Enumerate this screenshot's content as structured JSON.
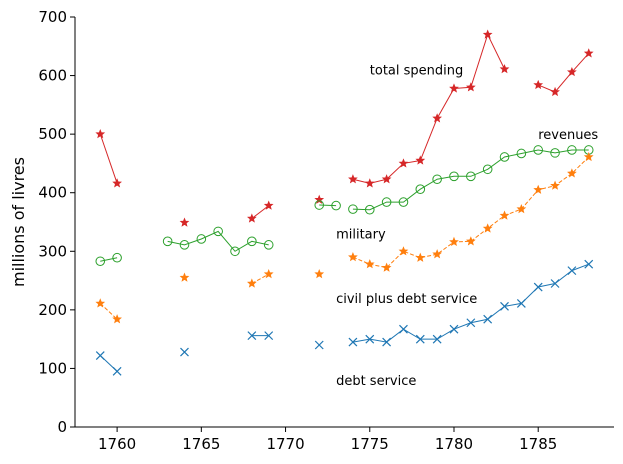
{
  "chart_data": {
    "type": "line",
    "xlabel": "",
    "ylabel": "millions of livres",
    "xlim": [
      1757.5,
      1789.5
    ],
    "ylim": [
      0,
      700
    ],
    "xticks": [
      1760,
      1765,
      1770,
      1775,
      1780,
      1785
    ],
    "yticks": [
      0,
      100,
      200,
      300,
      400,
      500,
      600,
      700
    ],
    "grid": false,
    "legend": "none",
    "annotations": [
      {
        "text": "total spending",
        "x": 1775,
        "y": 610
      },
      {
        "text": "revenues",
        "x": 1785,
        "y": 500
      },
      {
        "text": "military",
        "x": 1773,
        "y": 330
      },
      {
        "text": "civil plus debt service",
        "x": 1773,
        "y": 220
      },
      {
        "text": "debt service",
        "x": 1773,
        "y": 80
      }
    ],
    "series": [
      {
        "key": "total_spending",
        "color": "#d62728",
        "marker": "star",
        "linestyle": "solid",
        "points": [
          [
            1759,
            500
          ],
          [
            1760,
            416
          ],
          [
            1764,
            349
          ],
          [
            1768,
            356
          ],
          [
            1769,
            378
          ],
          [
            1772,
            388
          ],
          [
            1774,
            423
          ],
          [
            1775,
            416
          ],
          [
            1776,
            423
          ],
          [
            1777,
            450
          ],
          [
            1778,
            455
          ],
          [
            1779,
            527
          ],
          [
            1780,
            578
          ],
          [
            1781,
            580
          ],
          [
            1782,
            670
          ],
          [
            1783,
            611
          ],
          [
            1785,
            584
          ],
          [
            1786,
            572
          ],
          [
            1787,
            606
          ],
          [
            1788,
            638
          ]
        ],
        "segments": [
          [
            0,
            1
          ],
          [
            3,
            4
          ],
          [
            6,
            15
          ],
          [
            16,
            19
          ]
        ]
      },
      {
        "key": "revenues",
        "color": "#2ca02c",
        "marker": "circle",
        "linestyle": "solid",
        "points": [
          [
            1759,
            283
          ],
          [
            1760,
            289
          ],
          [
            1763,
            317
          ],
          [
            1764,
            311
          ],
          [
            1765,
            321
          ],
          [
            1766,
            334
          ],
          [
            1767,
            300
          ],
          [
            1768,
            317
          ],
          [
            1769,
            311
          ],
          [
            1772,
            379
          ],
          [
            1773,
            378
          ],
          [
            1774,
            372
          ],
          [
            1775,
            371
          ],
          [
            1776,
            384
          ],
          [
            1777,
            384
          ],
          [
            1778,
            406
          ],
          [
            1779,
            423
          ],
          [
            1780,
            428
          ],
          [
            1781,
            428
          ],
          [
            1782,
            440
          ],
          [
            1783,
            461
          ],
          [
            1784,
            467
          ],
          [
            1785,
            473
          ],
          [
            1786,
            468
          ],
          [
            1787,
            473
          ],
          [
            1788,
            473
          ]
        ],
        "segments": [
          [
            0,
            1
          ],
          [
            2,
            8
          ],
          [
            9,
            10
          ],
          [
            11,
            25
          ]
        ]
      },
      {
        "key": "military",
        "color": "#ff7f0e",
        "marker": "star",
        "linestyle": "dashed",
        "points": [
          [
            1759,
            211
          ],
          [
            1760,
            184
          ],
          [
            1764,
            255
          ],
          [
            1768,
            245
          ],
          [
            1769,
            261
          ],
          [
            1772,
            261
          ],
          [
            1774,
            290
          ],
          [
            1775,
            278
          ],
          [
            1776,
            272
          ],
          [
            1777,
            300
          ],
          [
            1778,
            289
          ],
          [
            1779,
            295
          ],
          [
            1780,
            316
          ],
          [
            1781,
            317
          ],
          [
            1782,
            339
          ],
          [
            1783,
            361
          ],
          [
            1784,
            372
          ],
          [
            1785,
            405
          ],
          [
            1786,
            412
          ],
          [
            1787,
            433
          ],
          [
            1788,
            461
          ]
        ],
        "segments": [
          [
            0,
            1
          ],
          [
            3,
            4
          ],
          [
            6,
            20
          ]
        ]
      },
      {
        "key": "debt_service",
        "color": "#1f77b4",
        "marker": "x",
        "linestyle": "solid",
        "points": [
          [
            1759,
            122
          ],
          [
            1760,
            95
          ],
          [
            1764,
            128
          ],
          [
            1768,
            156
          ],
          [
            1769,
            156
          ],
          [
            1772,
            140
          ],
          [
            1774,
            145
          ],
          [
            1775,
            150
          ],
          [
            1776,
            145
          ],
          [
            1777,
            167
          ],
          [
            1778,
            150
          ],
          [
            1779,
            150
          ],
          [
            1780,
            167
          ],
          [
            1781,
            178
          ],
          [
            1782,
            184
          ],
          [
            1783,
            206
          ],
          [
            1784,
            211
          ],
          [
            1785,
            239
          ],
          [
            1786,
            245
          ],
          [
            1787,
            267
          ],
          [
            1788,
            278
          ]
        ],
        "segments": [
          [
            0,
            1
          ],
          [
            3,
            4
          ],
          [
            6,
            20
          ]
        ]
      }
    ]
  }
}
